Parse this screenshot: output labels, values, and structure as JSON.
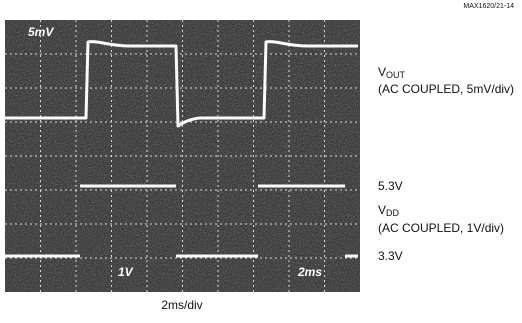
{
  "figure_id": "MAX1620/21-14",
  "screen_labels": {
    "top_left": "5mV",
    "bottom_left": "1V",
    "bottom_right": "2ms"
  },
  "vout": {
    "symbol": "V",
    "subscript": "OUT",
    "note": "(AC COUPLED, 5mV/div)"
  },
  "vdd": {
    "high_level": "5.3V",
    "symbol": "V",
    "subscript": "DD",
    "note": "(AC COUPLED, 1V/div)",
    "low_level": "3.3V"
  },
  "timebase": "2ms/div"
}
